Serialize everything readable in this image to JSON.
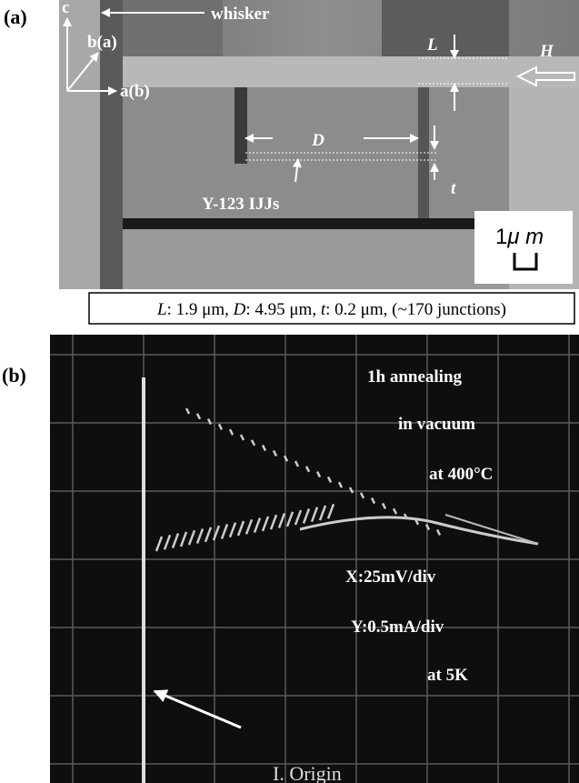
{
  "panel_a": {
    "label": "(a)",
    "axes": {
      "c": "c",
      "b": "b(a)",
      "a": "a(b)"
    },
    "whisker": "whisker",
    "L": "L",
    "H": "H",
    "D": "D",
    "t": "t",
    "ijj": "Y-123 IJJs",
    "scale_num": "1",
    "scale_unit": "μ m",
    "caption": {
      "parts": [
        "L",
        ": 1.9 μm, ",
        "D",
        ": 4.95 μm, ",
        "t",
        ": 0.2 μm,  (~170 junctions)"
      ]
    }
  },
  "panel_b": {
    "label": "(b)",
    "notes": [
      "1h annealing",
      "in vacuum",
      "at 400°C",
      "X:25mV/div",
      "Y:0.5mA/div",
      "at 5K"
    ],
    "origin": "I.  Origin"
  }
}
